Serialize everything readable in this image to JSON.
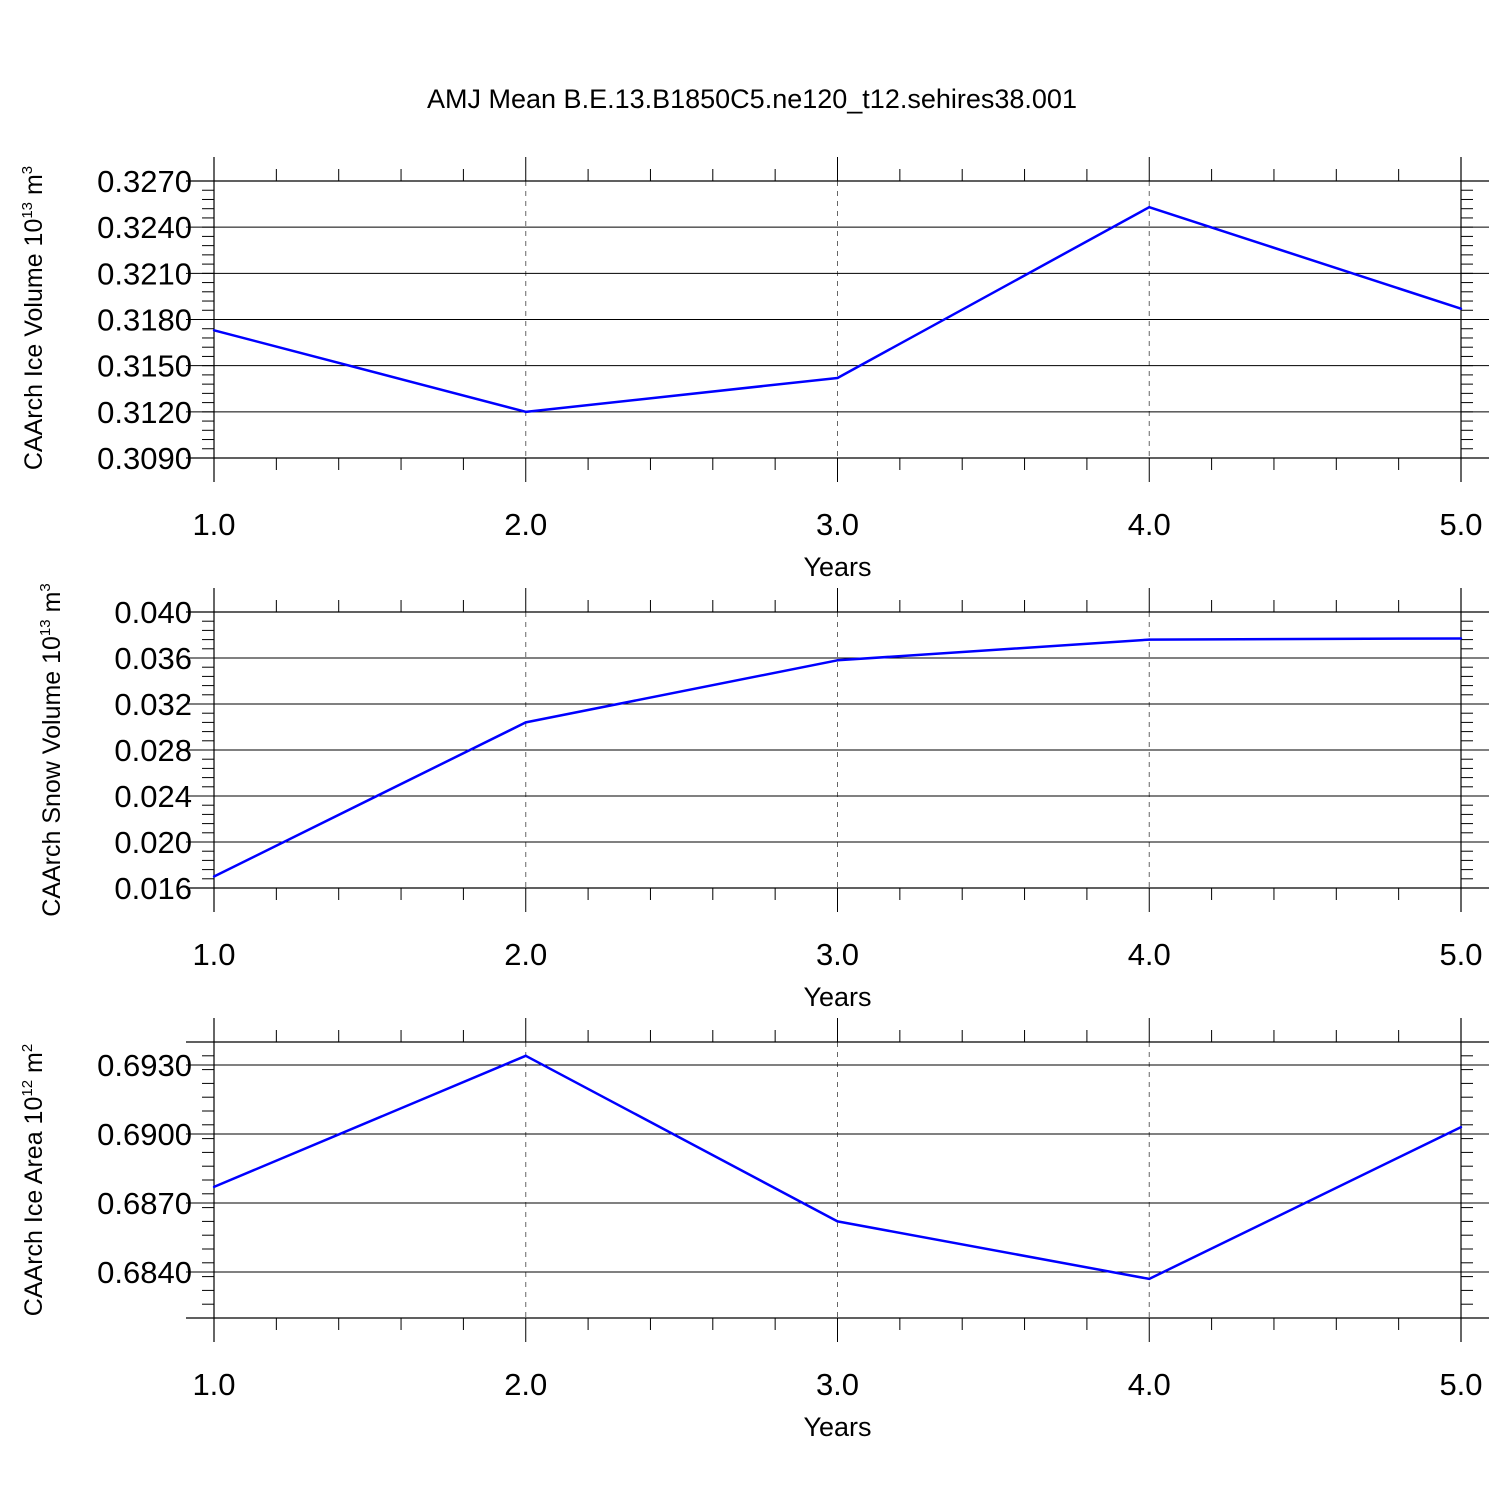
{
  "title": "AMJ Mean B.E.13.B1850C5.ne120_t12.sehires38.001",
  "colors": {
    "series": "#0000ff",
    "axes": "#000000",
    "grid": "#000000"
  },
  "chart_data": [
    {
      "type": "line",
      "ylabel": {
        "text": "CAArch Ice Volume 10",
        "exp": "13",
        "unit": " m",
        "unit_exp": "3"
      },
      "xlabel": "Years",
      "xlim": [
        1.0,
        5.0
      ],
      "ylim": [
        0.309,
        0.327
      ],
      "xticks": [
        "1.0",
        "2.0",
        "3.0",
        "4.0",
        "5.0"
      ],
      "yticks": [
        "0.3090",
        "0.3120",
        "0.3150",
        "0.3180",
        "0.3210",
        "0.3240",
        "0.3270"
      ],
      "x": [
        1,
        2,
        3,
        4,
        5
      ],
      "y": [
        0.3173,
        0.312,
        0.3142,
        0.3253,
        0.3187
      ],
      "grid": "vertical-dashed"
    },
    {
      "type": "line",
      "ylabel": {
        "text": "CAArch Snow Volume 10",
        "exp": "13",
        "unit": " m",
        "unit_exp": "3"
      },
      "xlabel": "Years",
      "xlim": [
        1.0,
        5.0
      ],
      "ylim": [
        0.016,
        0.04
      ],
      "xticks": [
        "1.0",
        "2.0",
        "3.0",
        "4.0",
        "5.0"
      ],
      "yticks": [
        "0.016",
        "0.020",
        "0.024",
        "0.028",
        "0.032",
        "0.036",
        "0.040"
      ],
      "x": [
        1,
        2,
        3,
        4,
        5
      ],
      "y": [
        0.017,
        0.0304,
        0.0358,
        0.0376,
        0.0377
      ],
      "grid": "vertical-dashed"
    },
    {
      "type": "line",
      "ylabel": {
        "text": "CAArch Ice Area 10",
        "exp": "12",
        "unit": " m",
        "unit_exp": "2"
      },
      "xlabel": "Years",
      "xlim": [
        1.0,
        5.0
      ],
      "ylim": [
        0.682,
        0.694
      ],
      "xticks": [
        "1.0",
        "2.0",
        "3.0",
        "4.0",
        "5.0"
      ],
      "yticks": [
        "0.6840",
        "0.6870",
        "0.6900",
        "0.6930"
      ],
      "x": [
        1,
        2,
        3,
        4,
        5
      ],
      "y": [
        0.6877,
        0.6934,
        0.6862,
        0.6837,
        0.6903
      ],
      "grid": "vertical-dashed"
    }
  ]
}
